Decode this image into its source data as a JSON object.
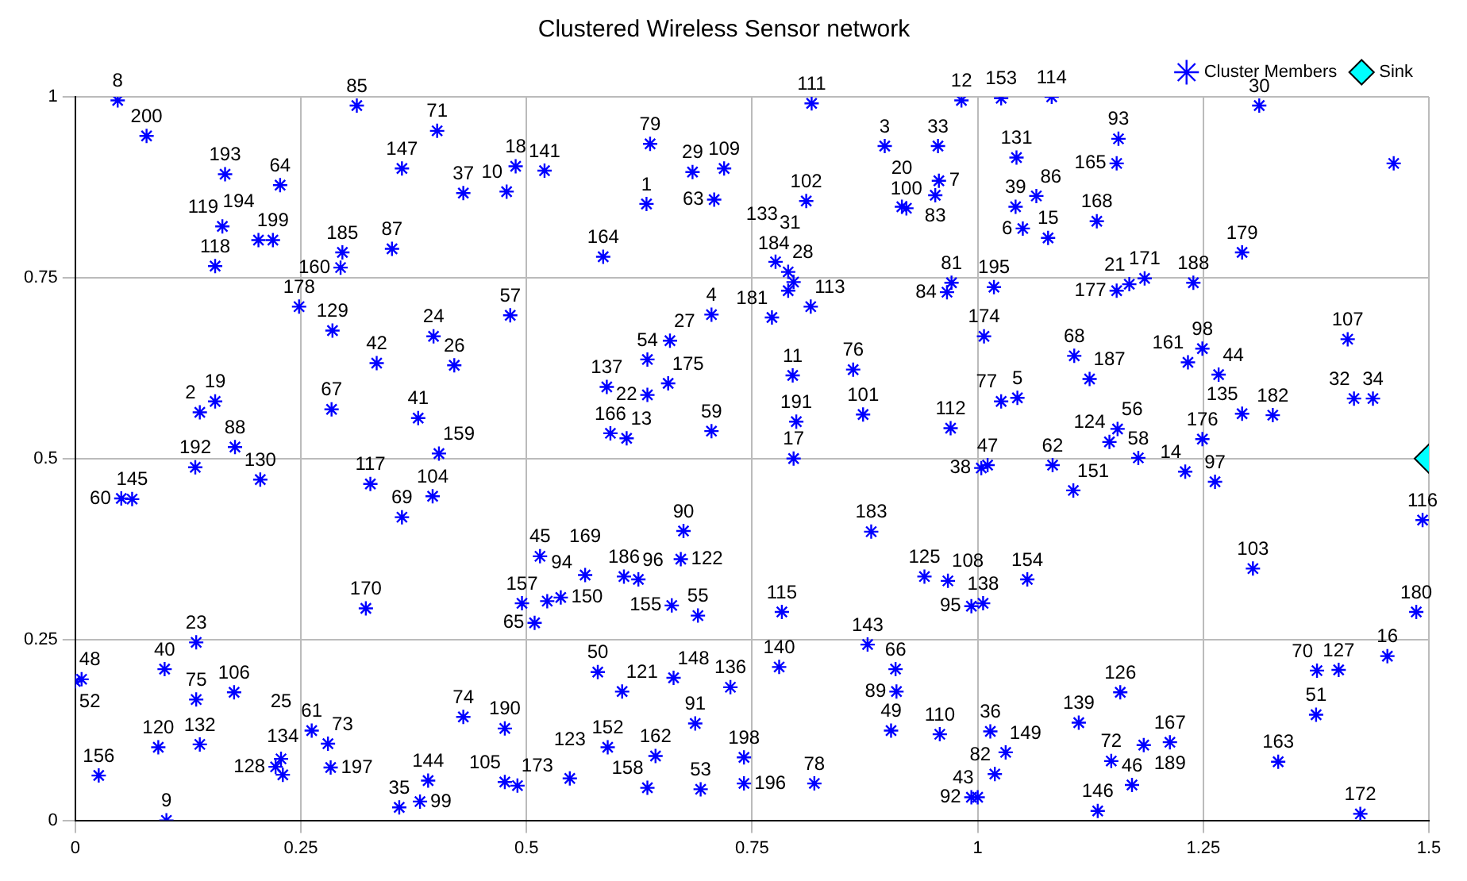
{
  "chart_data": {
    "type": "scatter",
    "title": "Clustered Wireless Sensor network",
    "xlim": [
      0,
      1.5
    ],
    "xticks": [
      0,
      0.25,
      0.5,
      0.75,
      1,
      1.25,
      1.5
    ],
    "ylim": [
      0,
      1
    ],
    "yticks": [
      0,
      0.25,
      0.5,
      0.75,
      1
    ],
    "grid": true,
    "legend": "top right",
    "series": [
      {
        "name": "Cluster Members",
        "color": "#0000ff",
        "marker": "cross",
        "x": [
          0.047,
          0.079,
          0.166,
          0.227,
          0.163,
          0.203,
          0.219,
          0.155,
          0.312,
          0.401,
          0.362,
          0.43,
          0.478,
          0.488,
          0.296,
          0.294,
          0.351,
          0.248,
          0.285,
          0.334,
          0.397,
          0.42,
          0.482,
          0.138,
          0.155,
          0.284,
          0.38,
          0.177,
          0.403,
          0.52,
          0.637,
          0.633,
          0.684,
          0.719,
          0.708,
          0.585,
          0.816,
          0.81,
          0.897,
          0.956,
          0.957,
          0.953,
          0.916,
          0.921,
          0.982,
          0.776,
          0.79,
          0.796,
          0.79,
          0.815,
          0.772,
          0.705,
          0.659,
          0.634,
          0.657,
          0.634,
          0.589,
          0.593,
          0.611,
          0.705,
          0.795,
          0.862,
          0.799,
          0.873,
          0.97,
          0.796,
          0.971,
          0.966,
          1.018,
          1.007,
          1.026,
          1.082,
          1.312,
          1.461,
          1.043,
          1.156,
          1.154,
          1.065,
          1.042,
          1.05,
          1.078,
          1.132,
          1.293,
          1.154,
          1.168,
          1.185,
          1.239,
          1.107,
          1.124,
          1.233,
          1.249,
          1.267,
          1.41,
          1.417,
          1.438,
          1.026,
          1.044,
          1.293,
          1.327,
          1.155,
          1.146,
          1.178,
          1.249,
          1.083,
          1.23,
          1.263,
          1.106,
          1.493,
          1.305,
          1.055,
          1.486,
          1.454,
          1.376,
          1.4,
          1.158,
          1.375,
          1.112,
          1.184,
          1.213,
          1.148,
          1.333,
          1.171,
          1.133,
          1.424,
          1.031,
          1.019,
          1.014,
          1.004,
          1.011,
          0.674,
          0.515,
          0.671,
          0.565,
          0.608,
          0.624,
          0.523,
          0.538,
          0.495,
          0.509,
          0.661,
          0.69,
          0.783,
          0.882,
          0.941,
          0.967,
          0.993,
          1.006,
          0.878,
          0.78,
          0.909,
          0.91,
          0.579,
          0.663,
          0.606,
          0.726,
          0.687,
          0.904,
          0.958,
          0.59,
          0.643,
          0.741,
          0.548,
          0.634,
          0.693,
          0.741,
          0.819,
          0.993,
          1.0,
          0.133,
          0.205,
          0.051,
          0.063,
          0.327,
          0.396,
          0.362,
          0.322,
          0.134,
          0.099,
          0.0,
          0.007,
          0.134,
          0.176,
          0.092,
          0.138,
          0.026,
          0.101,
          0.228,
          0.222,
          0.23,
          0.262,
          0.28,
          0.283,
          0.43,
          0.476,
          0.391,
          0.476,
          0.49,
          0.382,
          0.359
        ],
        "values": [
          0.995,
          0.946,
          0.893,
          0.878,
          0.821,
          0.802,
          0.802,
          0.766,
          0.988,
          0.953,
          0.901,
          0.867,
          0.869,
          0.904,
          0.785,
          0.764,
          0.79,
          0.71,
          0.677,
          0.632,
          0.669,
          0.629,
          0.698,
          0.564,
          0.579,
          0.568,
          0.556,
          0.516,
          0.507,
          0.898,
          0.935,
          0.852,
          0.896,
          0.901,
          0.858,
          0.779,
          0.991,
          0.856,
          0.932,
          0.932,
          0.884,
          0.864,
          0.848,
          0.846,
          0.995,
          0.772,
          0.758,
          0.744,
          0.732,
          0.71,
          0.695,
          0.699,
          0.663,
          0.637,
          0.604,
          0.588,
          0.599,
          0.535,
          0.528,
          0.538,
          0.615,
          0.623,
          0.551,
          0.561,
          0.542,
          0.5,
          0.743,
          0.73,
          0.737,
          0.669,
          0.998,
          1.0,
          0.988,
          0.908,
          0.916,
          0.942,
          0.908,
          0.863,
          0.848,
          0.818,
          0.805,
          0.828,
          0.785,
          0.732,
          0.741,
          0.749,
          0.743,
          0.642,
          0.61,
          0.633,
          0.652,
          0.616,
          0.665,
          0.583,
          0.583,
          0.579,
          0.584,
          0.562,
          0.56,
          0.541,
          0.523,
          0.501,
          0.527,
          0.491,
          0.482,
          0.468,
          0.456,
          0.415,
          0.348,
          0.333,
          0.288,
          0.227,
          0.207,
          0.208,
          0.177,
          0.146,
          0.135,
          0.104,
          0.108,
          0.082,
          0.081,
          0.049,
          0.013,
          0.009,
          0.094,
          0.064,
          0.123,
          0.487,
          0.491,
          0.4,
          0.365,
          0.361,
          0.339,
          0.337,
          0.333,
          0.303,
          0.308,
          0.3,
          0.273,
          0.297,
          0.283,
          0.288,
          0.399,
          0.337,
          0.331,
          0.296,
          0.3,
          0.243,
          0.212,
          0.209,
          0.178,
          0.205,
          0.197,
          0.178,
          0.184,
          0.134,
          0.124,
          0.119,
          0.101,
          0.089,
          0.087,
          0.058,
          0.045,
          0.043,
          0.051,
          0.051,
          0.032,
          0.032,
          0.488,
          0.471,
          0.445,
          0.444,
          0.465,
          0.448,
          0.419,
          0.293,
          0.246,
          0.209,
          0.192,
          0.195,
          0.167,
          0.177,
          0.101,
          0.105,
          0.062,
          0.0,
          0.085,
          0.074,
          0.063,
          0.124,
          0.106,
          0.073,
          0.143,
          0.127,
          0.055,
          0.053,
          0.048,
          0.026,
          0.018
        ]
      },
      {
        "name": "Sink",
        "color": "#00ffff",
        "marker": "diamond",
        "x": [
          1.5
        ],
        "values": [
          0.5
        ]
      }
    ],
    "annotations": [
      {
        "text": "8",
        "x": 0.047,
        "y": 0.995
      },
      {
        "text": "200",
        "x": 0.079,
        "y": 0.946
      },
      {
        "text": "193",
        "x": 0.166,
        "y": 0.893
      },
      {
        "text": "64",
        "x": 0.227,
        "y": 0.878
      },
      {
        "text": "119",
        "x": 0.163,
        "y": 0.821
      },
      {
        "text": "194",
        "x": 0.203,
        "y": 0.802
      },
      {
        "text": "199",
        "x": 0.219,
        "y": 0.802
      },
      {
        "text": "118",
        "x": 0.155,
        "y": 0.766
      },
      {
        "text": "85",
        "x": 0.312,
        "y": 0.988
      },
      {
        "text": "71",
        "x": 0.401,
        "y": 0.953
      },
      {
        "text": "147",
        "x": 0.362,
        "y": 0.901
      },
      {
        "text": "37",
        "x": 0.43,
        "y": 0.867
      },
      {
        "text": "10",
        "x": 0.478,
        "y": 0.869
      },
      {
        "text": "18",
        "x": 0.488,
        "y": 0.904
      },
      {
        "text": "185",
        "x": 0.296,
        "y": 0.785
      },
      {
        "text": "160",
        "x": 0.294,
        "y": 0.764
      },
      {
        "text": "87",
        "x": 0.351,
        "y": 0.79
      },
      {
        "text": "178",
        "x": 0.248,
        "y": 0.71
      },
      {
        "text": "129",
        "x": 0.285,
        "y": 0.677
      },
      {
        "text": "42",
        "x": 0.334,
        "y": 0.632
      },
      {
        "text": "24",
        "x": 0.397,
        "y": 0.669
      },
      {
        "text": "26",
        "x": 0.42,
        "y": 0.629
      },
      {
        "text": "57",
        "x": 0.482,
        "y": 0.698
      },
      {
        "text": "2",
        "x": 0.138,
        "y": 0.564
      },
      {
        "text": "19",
        "x": 0.155,
        "y": 0.579
      },
      {
        "text": "67",
        "x": 0.284,
        "y": 0.568
      },
      {
        "text": "41",
        "x": 0.38,
        "y": 0.556
      },
      {
        "text": "88",
        "x": 0.177,
        "y": 0.516
      },
      {
        "text": "159",
        "x": 0.403,
        "y": 0.507
      },
      {
        "text": "141",
        "x": 0.52,
        "y": 0.898
      },
      {
        "text": "79",
        "x": 0.637,
        "y": 0.935
      },
      {
        "text": "1",
        "x": 0.633,
        "y": 0.852
      },
      {
        "text": "29",
        "x": 0.684,
        "y": 0.896
      },
      {
        "text": "109",
        "x": 0.719,
        "y": 0.901
      },
      {
        "text": "63",
        "x": 0.708,
        "y": 0.858
      },
      {
        "text": "164",
        "x": 0.585,
        "y": 0.779
      },
      {
        "text": "111",
        "x": 0.816,
        "y": 0.991
      },
      {
        "text": "102",
        "x": 0.81,
        "y": 0.856
      },
      {
        "text": "3",
        "x": 0.897,
        "y": 0.932
      },
      {
        "text": "33",
        "x": 0.956,
        "y": 0.932
      },
      {
        "text": "7",
        "x": 0.957,
        "y": 0.884
      },
      {
        "text": "83",
        "x": 0.953,
        "y": 0.864
      },
      {
        "text": "20",
        "x": 0.916,
        "y": 0.848
      },
      {
        "text": "100",
        "x": 0.921,
        "y": 0.846
      },
      {
        "text": "12",
        "x": 0.982,
        "y": 0.995
      },
      {
        "text": "31",
        "x": 0.776,
        "y": 0.772
      },
      {
        "text": "133",
        "x": 0.79,
        "y": 0.758
      },
      {
        "text": "184",
        "x": 0.796,
        "y": 0.744
      },
      {
        "text": "28",
        "x": 0.79,
        "y": 0.732
      },
      {
        "text": "113",
        "x": 0.815,
        "y": 0.71
      },
      {
        "text": "181",
        "x": 0.772,
        "y": 0.695
      },
      {
        "text": "4",
        "x": 0.705,
        "y": 0.699
      },
      {
        "text": "27",
        "x": 0.659,
        "y": 0.663
      },
      {
        "text": "54",
        "x": 0.634,
        "y": 0.637
      },
      {
        "text": "175",
        "x": 0.657,
        "y": 0.604
      },
      {
        "text": "22",
        "x": 0.634,
        "y": 0.588
      },
      {
        "text": "137",
        "x": 0.589,
        "y": 0.599
      },
      {
        "text": "166",
        "x": 0.593,
        "y": 0.535
      },
      {
        "text": "13",
        "x": 0.611,
        "y": 0.528
      },
      {
        "text": "59",
        "x": 0.705,
        "y": 0.538
      },
      {
        "text": "11",
        "x": 0.795,
        "y": 0.615
      },
      {
        "text": "76",
        "x": 0.862,
        "y": 0.623
      },
      {
        "text": "191",
        "x": 0.799,
        "y": 0.551
      },
      {
        "text": "101",
        "x": 0.873,
        "y": 0.561
      },
      {
        "text": "112",
        "x": 0.97,
        "y": 0.542
      },
      {
        "text": "17",
        "x": 0.796,
        "y": 0.5
      },
      {
        "text": "81",
        "x": 0.971,
        "y": 0.743
      },
      {
        "text": "84",
        "x": 0.966,
        "y": 0.73
      },
      {
        "text": "195",
        "x": 1.018,
        "y": 0.737
      },
      {
        "text": "174",
        "x": 1.007,
        "y": 0.669
      },
      {
        "text": "153",
        "x": 1.026,
        "y": 0.998
      },
      {
        "text": "114",
        "x": 1.082,
        "y": 1.0
      },
      {
        "text": "30",
        "x": 1.312,
        "y": 0.988
      },
      {
        "text": "131",
        "x": 1.043,
        "y": 0.916
      },
      {
        "text": "93",
        "x": 1.156,
        "y": 0.942
      },
      {
        "text": "165",
        "x": 1.154,
        "y": 0.908
      },
      {
        "text": "86",
        "x": 1.065,
        "y": 0.863
      },
      {
        "text": "39",
        "x": 1.042,
        "y": 0.848
      },
      {
        "text": "6",
        "x": 1.05,
        "y": 0.818
      },
      {
        "text": "15",
        "x": 1.078,
        "y": 0.805
      },
      {
        "text": "168",
        "x": 1.132,
        "y": 0.828
      },
      {
        "text": "179",
        "x": 1.293,
        "y": 0.785
      },
      {
        "text": "177",
        "x": 1.154,
        "y": 0.732
      },
      {
        "text": "21",
        "x": 1.168,
        "y": 0.741
      },
      {
        "text": "171",
        "x": 1.185,
        "y": 0.749
      },
      {
        "text": "188",
        "x": 1.239,
        "y": 0.743
      },
      {
        "text": "68",
        "x": 1.107,
        "y": 0.642
      },
      {
        "text": "187",
        "x": 1.124,
        "y": 0.61
      },
      {
        "text": "161",
        "x": 1.233,
        "y": 0.633
      },
      {
        "text": "98",
        "x": 1.249,
        "y": 0.652
      },
      {
        "text": "44",
        "x": 1.267,
        "y": 0.616
      },
      {
        "text": "107",
        "x": 1.41,
        "y": 0.665
      },
      {
        "text": "32",
        "x": 1.417,
        "y": 0.583
      },
      {
        "text": "34",
        "x": 1.438,
        "y": 0.583
      },
      {
        "text": "77",
        "x": 1.026,
        "y": 0.579
      },
      {
        "text": "5",
        "x": 1.044,
        "y": 0.584
      },
      {
        "text": "135",
        "x": 1.293,
        "y": 0.562
      },
      {
        "text": "182",
        "x": 1.327,
        "y": 0.56
      },
      {
        "text": "56",
        "x": 1.155,
        "y": 0.541
      },
      {
        "text": "124",
        "x": 1.146,
        "y": 0.523
      },
      {
        "text": "58",
        "x": 1.178,
        "y": 0.501
      },
      {
        "text": "176",
        "x": 1.249,
        "y": 0.527
      },
      {
        "text": "62",
        "x": 1.083,
        "y": 0.491
      },
      {
        "text": "14",
        "x": 1.23,
        "y": 0.482
      },
      {
        "text": "97",
        "x": 1.263,
        "y": 0.468
      },
      {
        "text": "151",
        "x": 1.106,
        "y": 0.456
      },
      {
        "text": "116",
        "x": 1.493,
        "y": 0.415
      },
      {
        "text": "103",
        "x": 1.305,
        "y": 0.348
      },
      {
        "text": "154",
        "x": 1.055,
        "y": 0.333
      },
      {
        "text": "180",
        "x": 1.486,
        "y": 0.288
      },
      {
        "text": "16",
        "x": 1.454,
        "y": 0.227
      },
      {
        "text": "70",
        "x": 1.376,
        "y": 0.207
      },
      {
        "text": "127",
        "x": 1.4,
        "y": 0.208
      },
      {
        "text": "126",
        "x": 1.158,
        "y": 0.177
      },
      {
        "text": "51",
        "x": 1.375,
        "y": 0.146
      },
      {
        "text": "139",
        "x": 1.112,
        "y": 0.135
      },
      {
        "text": "189",
        "x": 1.184,
        "y": 0.104
      },
      {
        "text": "167",
        "x": 1.213,
        "y": 0.108
      },
      {
        "text": "72",
        "x": 1.148,
        "y": 0.082
      },
      {
        "text": "163",
        "x": 1.333,
        "y": 0.081
      },
      {
        "text": "46",
        "x": 1.171,
        "y": 0.049
      },
      {
        "text": "146",
        "x": 1.133,
        "y": 0.013
      },
      {
        "text": "172",
        "x": 1.424,
        "y": 0.009
      },
      {
        "text": "149",
        "x": 1.031,
        "y": 0.094
      },
      {
        "text": "82",
        "x": 1.019,
        "y": 0.064
      },
      {
        "text": "36",
        "x": 1.014,
        "y": 0.123
      },
      {
        "text": "38",
        "x": 1.004,
        "y": 0.487
      },
      {
        "text": "47",
        "x": 1.011,
        "y": 0.491
      },
      {
        "text": "90",
        "x": 0.674,
        "y": 0.4
      },
      {
        "text": "45",
        "x": 0.515,
        "y": 0.365
      },
      {
        "text": "122",
        "x": 0.671,
        "y": 0.361
      },
      {
        "text": "169",
        "x": 0.565,
        "y": 0.339
      },
      {
        "text": "186",
        "x": 0.608,
        "y": 0.337
      },
      {
        "text": "96",
        "x": 0.624,
        "y": 0.333
      },
      {
        "text": "94",
        "x": 0.523,
        "y": 0.303
      },
      {
        "text": "150",
        "x": 0.538,
        "y": 0.308
      },
      {
        "text": "157",
        "x": 0.495,
        "y": 0.3
      },
      {
        "text": "65",
        "x": 0.509,
        "y": 0.273
      },
      {
        "text": "155",
        "x": 0.661,
        "y": 0.297
      },
      {
        "text": "55",
        "x": 0.69,
        "y": 0.283
      },
      {
        "text": "115",
        "x": 0.783,
        "y": 0.288
      },
      {
        "text": "183",
        "x": 0.882,
        "y": 0.399
      },
      {
        "text": "125",
        "x": 0.941,
        "y": 0.337
      },
      {
        "text": "108",
        "x": 0.967,
        "y": 0.331
      },
      {
        "text": "95",
        "x": 0.993,
        "y": 0.296
      },
      {
        "text": "138",
        "x": 1.006,
        "y": 0.3
      },
      {
        "text": "143",
        "x": 0.878,
        "y": 0.243
      },
      {
        "text": "140",
        "x": 0.78,
        "y": 0.212
      },
      {
        "text": "66",
        "x": 0.909,
        "y": 0.209
      },
      {
        "text": "89",
        "x": 0.91,
        "y": 0.178
      },
      {
        "text": "50",
        "x": 0.579,
        "y": 0.205
      },
      {
        "text": "148",
        "x": 0.663,
        "y": 0.197
      },
      {
        "text": "121",
        "x": 0.606,
        "y": 0.178
      },
      {
        "text": "136",
        "x": 0.726,
        "y": 0.184
      },
      {
        "text": "91",
        "x": 0.687,
        "y": 0.134
      },
      {
        "text": "49",
        "x": 0.904,
        "y": 0.124
      },
      {
        "text": "110",
        "x": 0.958,
        "y": 0.119
      },
      {
        "text": "152",
        "x": 0.59,
        "y": 0.101
      },
      {
        "text": "162",
        "x": 0.643,
        "y": 0.089
      },
      {
        "text": "198",
        "x": 0.741,
        "y": 0.087
      },
      {
        "text": "123",
        "x": 0.548,
        "y": 0.058
      },
      {
        "text": "158",
        "x": 0.634,
        "y": 0.045
      },
      {
        "text": "53",
        "x": 0.693,
        "y": 0.043
      },
      {
        "text": "196",
        "x": 0.741,
        "y": 0.051
      },
      {
        "text": "78",
        "x": 0.819,
        "y": 0.051
      },
      {
        "text": "92",
        "x": 0.993,
        "y": 0.032
      },
      {
        "text": "43",
        "x": 1.0,
        "y": 0.032
      },
      {
        "text": "192",
        "x": 0.133,
        "y": 0.488
      },
      {
        "text": "130",
        "x": 0.205,
        "y": 0.471
      },
      {
        "text": "60",
        "x": 0.051,
        "y": 0.445
      },
      {
        "text": "145",
        "x": 0.063,
        "y": 0.444
      },
      {
        "text": "117",
        "x": 0.327,
        "y": 0.465
      },
      {
        "text": "104",
        "x": 0.396,
        "y": 0.448
      },
      {
        "text": "69",
        "x": 0.362,
        "y": 0.419
      },
      {
        "text": "170",
        "x": 0.322,
        "y": 0.293
      },
      {
        "text": "23",
        "x": 0.134,
        "y": 0.246
      },
      {
        "text": "40",
        "x": 0.099,
        "y": 0.209
      },
      {
        "text": "52",
        "x": 0.0,
        "y": 0.192
      },
      {
        "text": "48",
        "x": 0.007,
        "y": 0.195
      },
      {
        "text": "75",
        "x": 0.134,
        "y": 0.167
      },
      {
        "text": "106",
        "x": 0.176,
        "y": 0.177
      },
      {
        "text": "120",
        "x": 0.092,
        "y": 0.101
      },
      {
        "text": "132",
        "x": 0.138,
        "y": 0.105
      },
      {
        "text": "156",
        "x": 0.026,
        "y": 0.062
      },
      {
        "text": "9",
        "x": 0.101,
        "y": 0.0
      },
      {
        "text": "25",
        "x": 0.228,
        "y": 0.085
      },
      {
        "text": "128",
        "x": 0.222,
        "y": 0.074
      },
      {
        "text": "134",
        "x": 0.23,
        "y": 0.063
      },
      {
        "text": "61",
        "x": 0.262,
        "y": 0.124
      },
      {
        "text": "73",
        "x": 0.28,
        "y": 0.106
      },
      {
        "text": "197",
        "x": 0.283,
        "y": 0.073
      },
      {
        "text": "74",
        "x": 0.43,
        "y": 0.143
      },
      {
        "text": "190",
        "x": 0.476,
        "y": 0.127
      },
      {
        "text": "144",
        "x": 0.391,
        "y": 0.055
      },
      {
        "text": "105",
        "x": 0.476,
        "y": 0.053
      },
      {
        "text": "173",
        "x": 0.49,
        "y": 0.048
      },
      {
        "text": "99",
        "x": 0.382,
        "y": 0.026
      },
      {
        "text": "35",
        "x": 0.359,
        "y": 0.018
      }
    ]
  }
}
